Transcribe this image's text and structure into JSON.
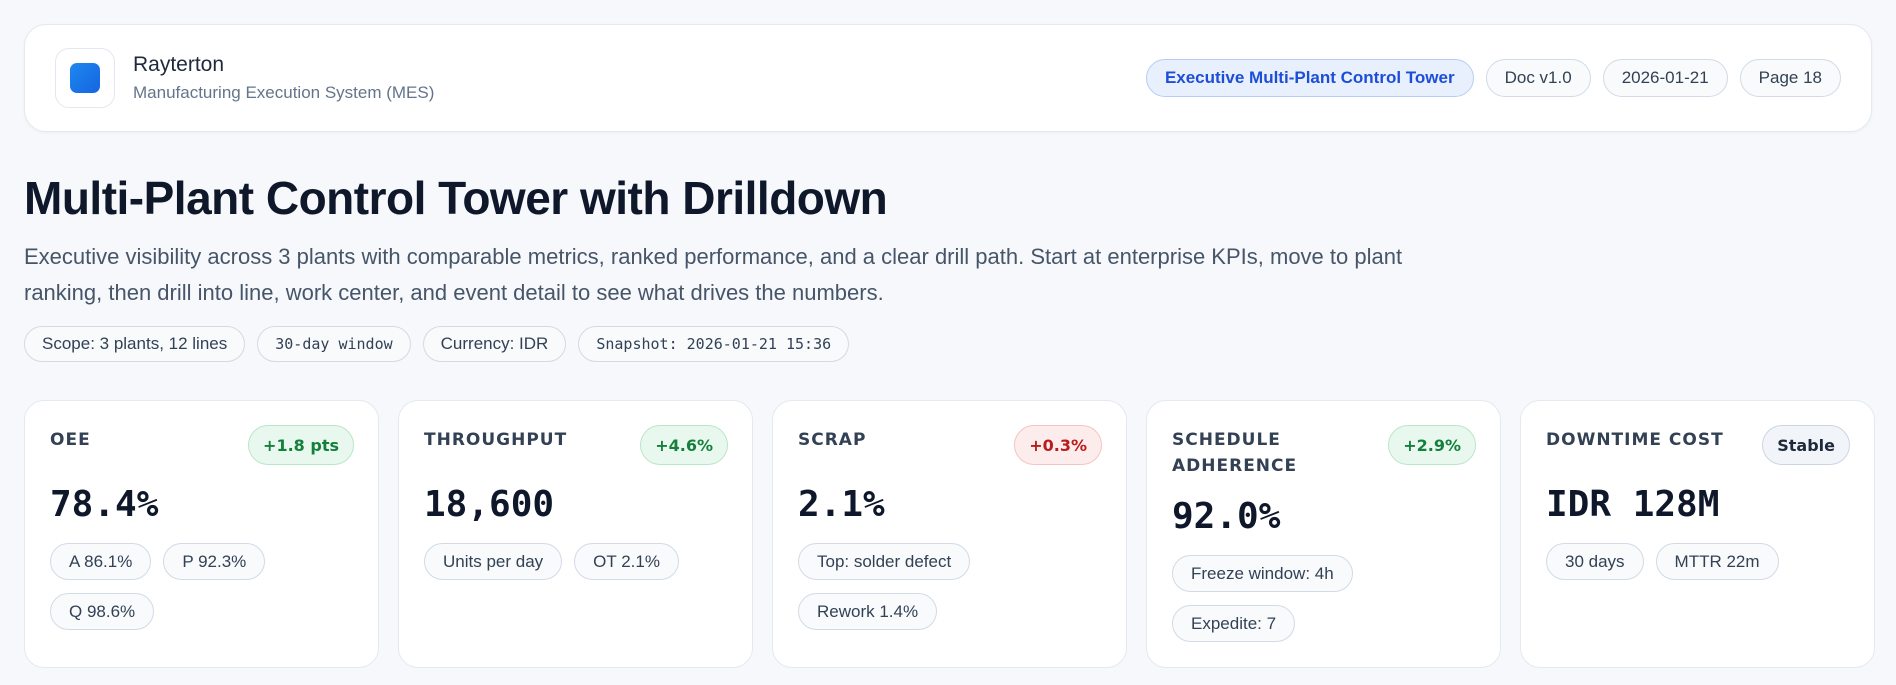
{
  "app": {
    "name": "Rayterton",
    "subtitle": "Manufacturing Execution System (MES)",
    "logo_icon": "rounded-square-logo",
    "accent": "#1e6ff0"
  },
  "header": {
    "pills": [
      {
        "label": "Executive Multi-Plant Control Tower",
        "primary": true
      },
      {
        "label": "Doc v1.0"
      },
      {
        "label": "2026-01-21"
      },
      {
        "label": "Page 18"
      }
    ]
  },
  "page": {
    "title": "Multi-Plant Control Tower with Drilldown",
    "description": "Executive visibility across 3 plants with comparable metrics, ranked performance, and a clear drill path. Start at enterprise KPIs, move to plant ranking, then drill into line, work center, and event detail to see what drives the numbers.",
    "chips": [
      {
        "label": "Scope: 3 plants, 12 lines"
      },
      {
        "label": "30-day window"
      },
      {
        "label": "Currency: IDR"
      },
      {
        "label": "Snapshot: 2026-01-21 15:36"
      }
    ]
  },
  "kpis": [
    {
      "label": "OEE",
      "delta": "+1.8 pts",
      "trend": "up",
      "value": "78.4%",
      "tags": [
        "A 86.1%",
        "P 92.3%",
        "Q 98.6%"
      ]
    },
    {
      "label": "THROUGHPUT",
      "delta": "+4.6%",
      "trend": "up",
      "value": "18,600",
      "tags": [
        "Units per day",
        "OT 2.1%"
      ]
    },
    {
      "label": "SCRAP",
      "delta": "+0.3%",
      "trend": "down",
      "value": "2.1%",
      "tags": [
        "Top: solder defect",
        "Rework 1.4%"
      ]
    },
    {
      "label": "SCHEDULE ADHERENCE",
      "delta": "+2.9%",
      "trend": "up",
      "value": "92.0%",
      "tags": [
        "Freeze window: 4h",
        "Expedite: 7"
      ]
    },
    {
      "label": "DOWNTIME COST",
      "delta": "Stable",
      "trend": "flat",
      "value": "IDR 128M",
      "tags": [
        "30 days",
        "MTTR 22m"
      ]
    }
  ],
  "colors": {
    "positive": "#15803d",
    "negative": "#b91c1c",
    "neutral": "#1e293b",
    "primary_pill": "#1d4ed8"
  }
}
